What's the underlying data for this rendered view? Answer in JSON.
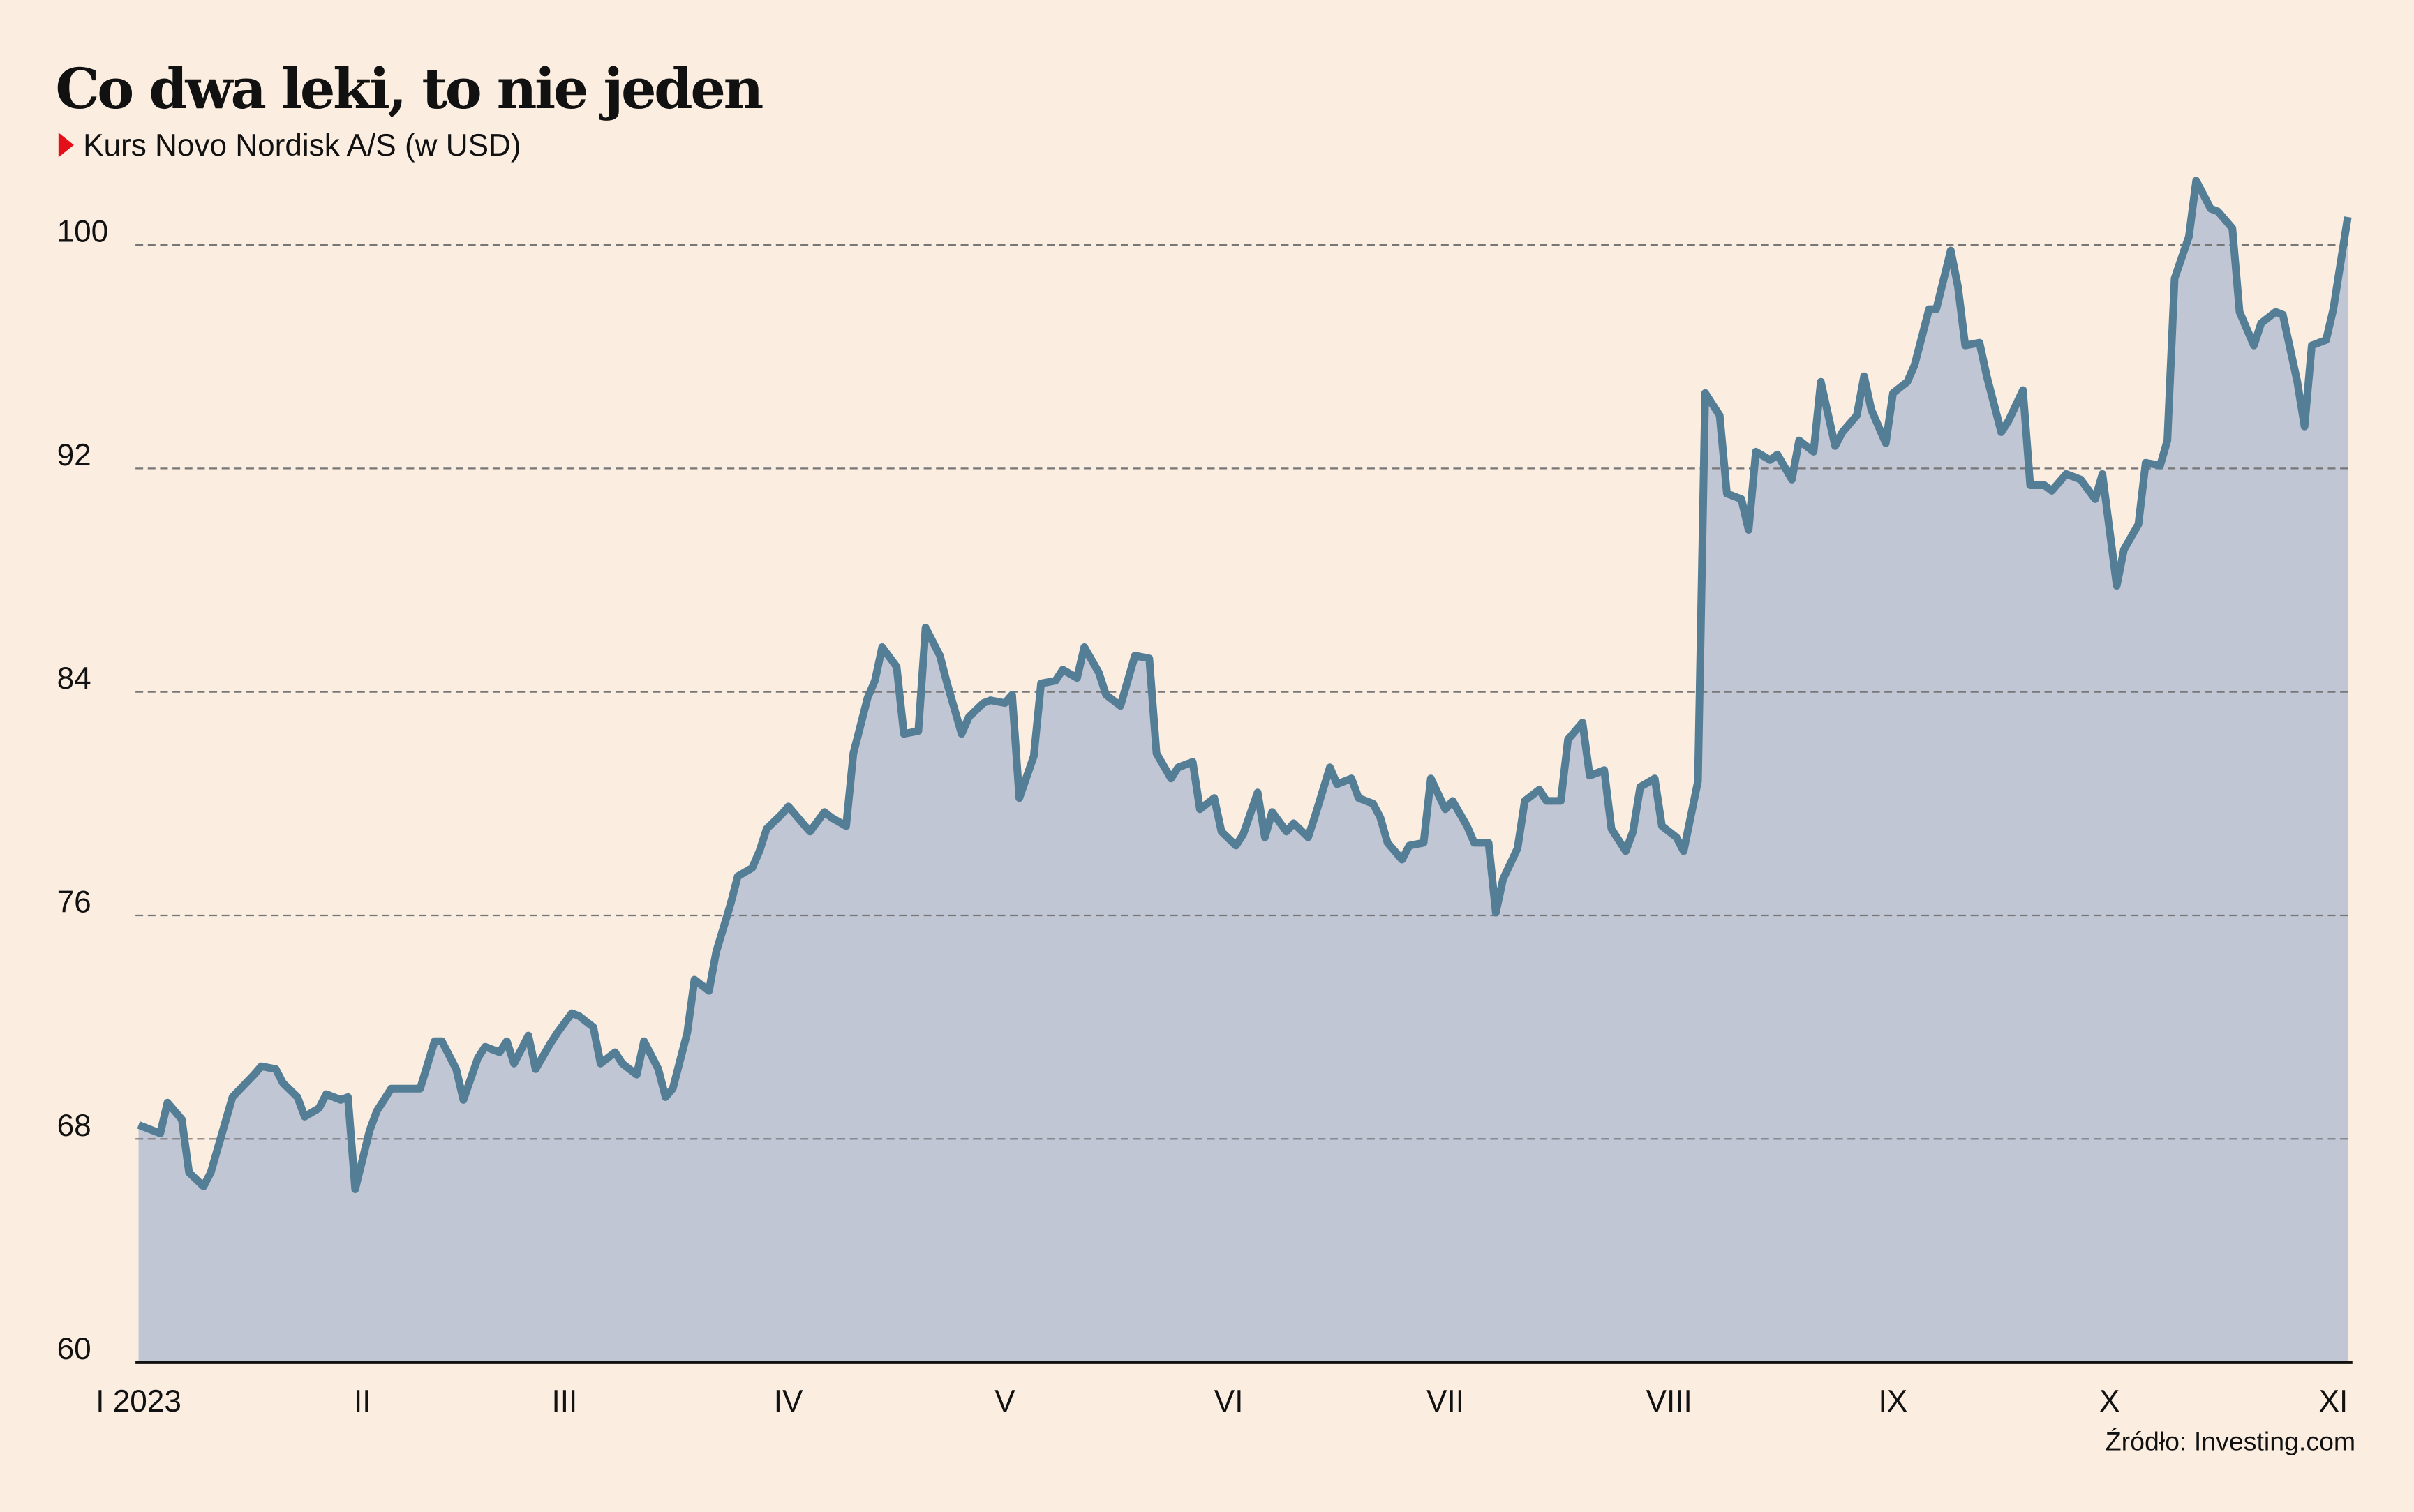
{
  "chart_data": {
    "type": "area",
    "title": "Co dwa leki, to nie jeden",
    "subtitle": "Kurs Novo Nordisk A/S (w USD)",
    "source": "Źródło: Investing.com",
    "color": "#547d96",
    "fill": "#c1c6d5",
    "grid": true,
    "x": [
      0,
      3,
      4,
      6,
      7,
      9,
      10,
      13,
      16,
      17,
      19,
      20,
      22,
      23,
      25,
      26,
      28,
      29,
      30,
      32,
      33,
      35,
      36,
      38,
      39,
      41,
      42,
      44,
      45,
      47,
      48,
      50,
      51,
      52,
      54,
      55,
      57,
      58,
      60,
      61,
      63,
      64,
      66,
      67,
      69,
      70,
      72,
      73,
      74,
      76,
      77,
      79,
      80,
      82,
      83,
      85,
      86,
      87,
      89,
      90,
      92,
      93,
      95,
      96,
      98,
      99,
      101,
      102,
      103,
      105,
      106,
      108,
      109,
      111,
      112,
      114,
      115,
      117,
      118,
      120,
      121,
      122,
      124,
      125,
      127,
      128,
      130,
      131,
      133,
      134,
      136,
      137,
      138,
      140,
      141,
      143,
      144,
      146,
      147,
      149,
      150,
      152,
      153,
      155,
      156,
      157,
      159,
      160,
      162,
      163,
      165,
      166,
      168,
      169,
      171,
      172,
      173,
      175,
      176,
      178,
      179,
      181,
      182,
      184,
      185,
      187,
      188,
      189,
      191,
      192,
      194,
      195,
      197,
      198,
      200,
      201,
      203,
      204,
      206,
      207,
      208,
      210,
      211,
      213,
      214,
      216,
      217,
      219,
      220,
      222,
      223,
      224,
      226,
      227,
      229,
      230,
      232,
      233,
      235,
      236,
      238,
      239,
      240,
      242,
      243,
      245,
      246,
      248,
      249,
      251,
      252,
      253,
      255,
      256,
      258,
      259,
      261,
      262,
      264,
      265,
      267,
      268,
      269,
      271,
      272,
      274,
      275,
      277,
      278,
      280,
      281,
      282,
      284,
      285,
      287,
      288,
      290,
      291,
      293,
      294,
      296,
      297,
      299,
      300,
      301,
      303,
      304,
      306
    ],
    "values": [
      68.5,
      68.2,
      69.3,
      68.7,
      66.8,
      66.3,
      66.8,
      69.5,
      70.3,
      70.6,
      70.5,
      70.0,
      69.5,
      68.8,
      69.1,
      69.6,
      69.4,
      69.5,
      66.2,
      68.3,
      69.0,
      69.8,
      69.8,
      69.8,
      69.8,
      71.5,
      71.5,
      70.5,
      69.4,
      70.9,
      71.3,
      71.1,
      71.5,
      70.7,
      71.7,
      70.5,
      71.4,
      71.8,
      72.5,
      72.4,
      72.0,
      70.7,
      71.1,
      70.7,
      70.3,
      71.5,
      70.5,
      69.5,
      69.8,
      71.8,
      73.7,
      73.3,
      74.7,
      76.4,
      77.4,
      77.7,
      78.3,
      79.1,
      79.6,
      79.9,
      79.3,
      79.0,
      79.7,
      79.5,
      79.2,
      81.8,
      83.8,
      84.4,
      85.6,
      84.9,
      82.5,
      82.6,
      86.3,
      85.3,
      84.3,
      82.5,
      83.1,
      83.6,
      83.7,
      83.6,
      83.9,
      80.2,
      81.7,
      84.3,
      84.4,
      84.8,
      84.5,
      85.6,
      84.7,
      83.9,
      83.5,
      84.4,
      85.3,
      85.2,
      81.8,
      80.9,
      81.3,
      81.5,
      79.8,
      80.2,
      79.0,
      78.5,
      78.9,
      80.4,
      78.8,
      79.7,
      79.0,
      79.3,
      78.8,
      79.6,
      81.3,
      80.7,
      80.9,
      80.2,
      80.0,
      79.5,
      78.6,
      78.0,
      78.5,
      78.6,
      80.9,
      79.8,
      80.1,
      79.2,
      78.6,
      78.6,
      76.1,
      77.3,
      78.4,
      80.1,
      80.5,
      80.1,
      80.1,
      82.3,
      82.9,
      81.0,
      81.2,
      79.1,
      78.3,
      79.0,
      80.6,
      80.9,
      79.2,
      78.8,
      78.3,
      80.8,
      94.7,
      93.9,
      91.1,
      90.9,
      89.8,
      92.6,
      92.3,
      92.5,
      91.6,
      93.0,
      92.6,
      95.1,
      92.8,
      93.3,
      93.9,
      95.3,
      94.1,
      92.9,
      94.7,
      95.1,
      95.7,
      97.7,
      97.7,
      99.8,
      98.5,
      96.4,
      96.5,
      95.3,
      93.3,
      93.7,
      94.8,
      91.4,
      91.4,
      91.2,
      91.8,
      91.7,
      91.6,
      90.9,
      91.8,
      87.8,
      89.1,
      90.0,
      92.2,
      92.1,
      93.0,
      98.8,
      100.3,
      102.3,
      101.3,
      101.2,
      100.6,
      97.6,
      96.4,
      97.2,
      97.6,
      97.5,
      95.1,
      93.5,
      96.4,
      96.6,
      97.7,
      101.0
    ],
    "xlim": [
      0,
      306
    ],
    "xticks": [
      {
        "value": 0,
        "label": "I 2023"
      },
      {
        "value": 31,
        "label": "II"
      },
      {
        "value": 59,
        "label": "III"
      },
      {
        "value": 90,
        "label": "IV"
      },
      {
        "value": 120,
        "label": "V"
      },
      {
        "value": 151,
        "label": "VI"
      },
      {
        "value": 181,
        "label": "VII"
      },
      {
        "value": 212,
        "label": "VIII"
      },
      {
        "value": 243,
        "label": "IX"
      },
      {
        "value": 273,
        "label": "X"
      },
      {
        "value": 304,
        "label": "XI"
      }
    ],
    "ylim": [
      60,
      103
    ],
    "yticks": [
      60,
      68,
      76,
      84,
      92,
      100
    ]
  }
}
